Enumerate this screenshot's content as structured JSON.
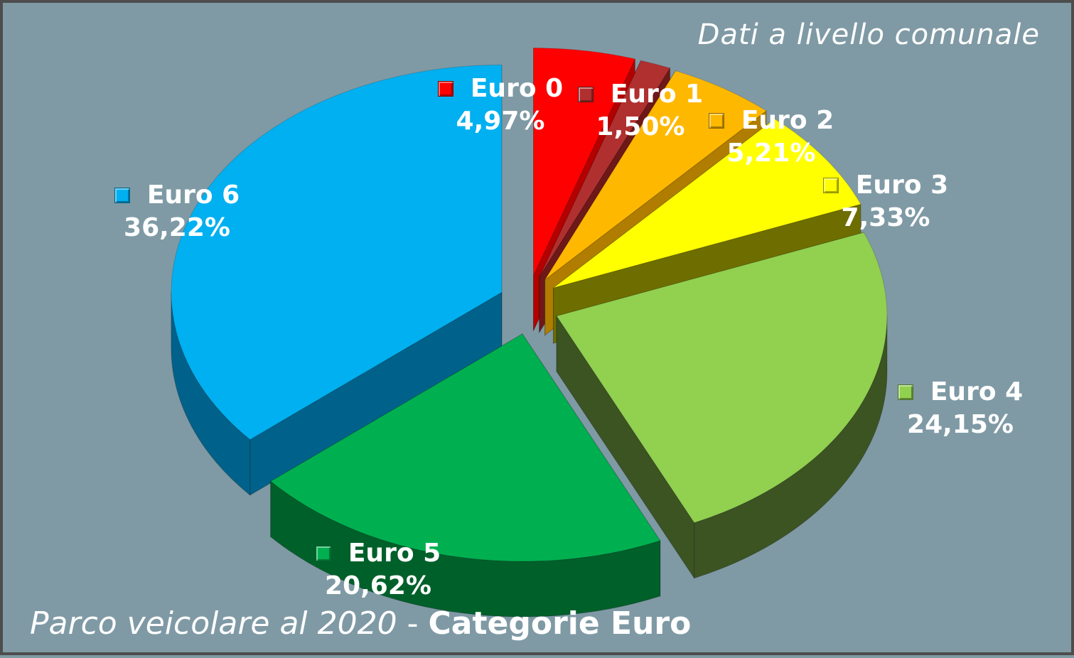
{
  "subtitle": "Dati a livello comunale",
  "footer": {
    "part1": "Parco veicolare al 2020",
    "separator": " - ",
    "part2": "Categorie Euro"
  },
  "chart_data": {
    "type": "pie",
    "title": "Parco veicolare al 2020 - Categorie Euro",
    "subtitle": "Dati a livello comunale",
    "legend": "labels on slices",
    "slices": [
      {
        "label": "Euro 0",
        "value": 4.97,
        "display": "4,97%",
        "color": "#ff0000",
        "side": "#b50000"
      },
      {
        "label": "Euro 1",
        "value": 1.5,
        "display": "1,50%",
        "color": "#b03030",
        "side": "#6e1818"
      },
      {
        "label": "Euro 2",
        "value": 5.21,
        "display": "5,21%",
        "color": "#ffb800",
        "side": "#b07d00"
      },
      {
        "label": "Euro 3",
        "value": 7.33,
        "display": "7,33%",
        "color": "#ffff00",
        "side": "#6e6e00"
      },
      {
        "label": "Euro 4",
        "value": 24.15,
        "display": "24,15%",
        "color": "#92d050",
        "side": "#3c5422"
      },
      {
        "label": "Euro 5",
        "value": 20.62,
        "display": "20,62%",
        "color": "#00b050",
        "side": "#00602a"
      },
      {
        "label": "Euro 6",
        "value": 36.22,
        "display": "36,22%",
        "color": "#00b0f0",
        "side": "#00628a"
      }
    ]
  }
}
